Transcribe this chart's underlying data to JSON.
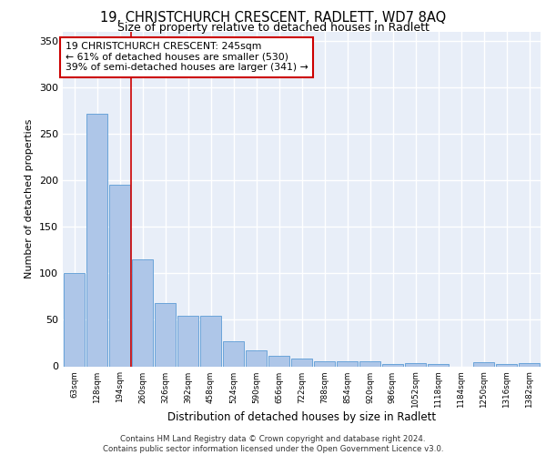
{
  "title": "19, CHRISTCHURCH CRESCENT, RADLETT, WD7 8AQ",
  "subtitle": "Size of property relative to detached houses in Radlett",
  "xlabel": "Distribution of detached houses by size in Radlett",
  "ylabel": "Number of detached properties",
  "categories": [
    "63sqm",
    "128sqm",
    "194sqm",
    "260sqm",
    "326sqm",
    "392sqm",
    "458sqm",
    "524sqm",
    "590sqm",
    "656sqm",
    "722sqm",
    "788sqm",
    "854sqm",
    "920sqm",
    "986sqm",
    "1052sqm",
    "1118sqm",
    "1184sqm",
    "1250sqm",
    "1316sqm",
    "1382sqm"
  ],
  "values": [
    100,
    272,
    195,
    115,
    68,
    54,
    54,
    27,
    17,
    11,
    8,
    5,
    5,
    5,
    2,
    3,
    2,
    0,
    4,
    2,
    3
  ],
  "bar_color": "#aec6e8",
  "bar_edge_color": "#5b9bd5",
  "vline_x_index": 2,
  "vline_color": "#cc0000",
  "annotation_text": "19 CHRISTCHURCH CRESCENT: 245sqm\n← 61% of detached houses are smaller (530)\n39% of semi-detached houses are larger (341) →",
  "annotation_box_color": "#ffffff",
  "annotation_box_edge": "#cc0000",
  "ylim": [
    0,
    360
  ],
  "yticks": [
    0,
    50,
    100,
    150,
    200,
    250,
    300,
    350
  ],
  "bg_color": "#e8eef8",
  "grid_color": "#ffffff",
  "footer": "Contains HM Land Registry data © Crown copyright and database right 2024.\nContains public sector information licensed under the Open Government Licence v3.0."
}
